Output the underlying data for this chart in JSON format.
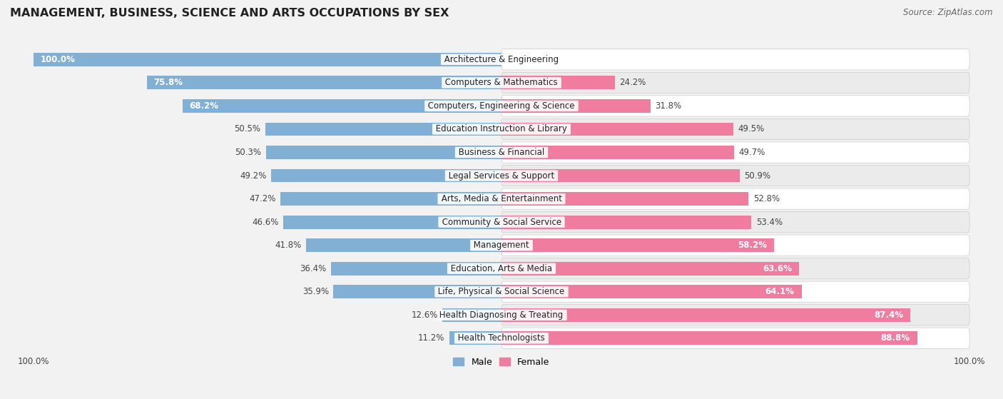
{
  "title": "MANAGEMENT, BUSINESS, SCIENCE AND ARTS OCCUPATIONS BY SEX",
  "source": "Source: ZipAtlas.com",
  "categories": [
    "Architecture & Engineering",
    "Computers & Mathematics",
    "Computers, Engineering & Science",
    "Education Instruction & Library",
    "Business & Financial",
    "Legal Services & Support",
    "Arts, Media & Entertainment",
    "Community & Social Service",
    "Management",
    "Education, Arts & Media",
    "Life, Physical & Social Science",
    "Health Diagnosing & Treating",
    "Health Technologists"
  ],
  "male": [
    100.0,
    75.8,
    68.2,
    50.5,
    50.3,
    49.2,
    47.2,
    46.6,
    41.8,
    36.4,
    35.9,
    12.6,
    11.2
  ],
  "female": [
    0.0,
    24.2,
    31.8,
    49.5,
    49.7,
    50.9,
    52.8,
    53.4,
    58.2,
    63.6,
    64.1,
    87.4,
    88.8
  ],
  "male_color": "#82b0d5",
  "female_color": "#f07ca0",
  "male_label": "Male",
  "female_label": "Female",
  "bg_color": "#f2f2f2",
  "row_color_even": "#ffffff",
  "row_color_odd": "#ebebeb",
  "title_fontsize": 11.5,
  "label_fontsize": 8.5,
  "source_fontsize": 8.5,
  "legend_fontsize": 9,
  "bar_height": 0.58,
  "figsize": [
    14.06,
    5.59
  ],
  "dpi": 100,
  "inside_label_threshold": 55
}
